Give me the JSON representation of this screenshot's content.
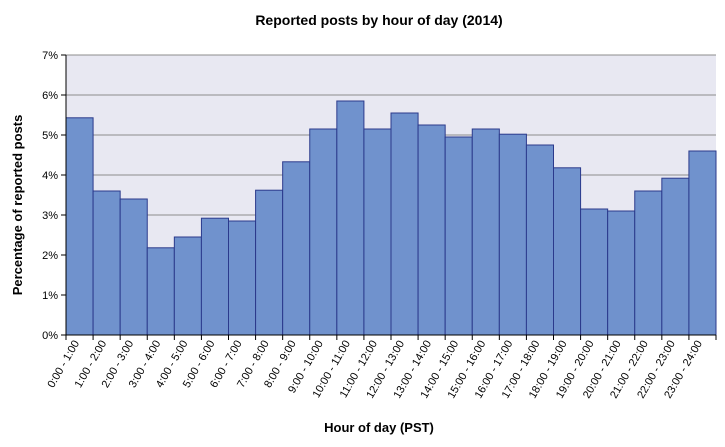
{
  "chart_data": {
    "type": "bar",
    "title": "Reported posts by hour of day (2014)",
    "xlabel": "Hour of day (PST)",
    "ylabel": "Percentage of reported posts",
    "ylim": [
      0,
      7
    ],
    "yticks": [
      "0%",
      "1%",
      "2%",
      "3%",
      "4%",
      "5%",
      "6%",
      "7%"
    ],
    "grid": true,
    "legend": "none",
    "categories": [
      "0:00 - 1:00",
      "1:00 - 2:00",
      "2:00 - 3:00",
      "3:00 - 4:00",
      "4:00 - 5:00",
      "5:00 - 6:00",
      "6:00 - 7:00",
      "7:00 - 8:00",
      "8:00 - 9:00",
      "9:00 - 10:00",
      "10:00 - 11:00",
      "11:00 - 12:00",
      "12:00 - 13:00",
      "13:00 - 14:00",
      "14:00 - 15:00",
      "15:00 - 16:00",
      "16:00 - 17:00",
      "17:00 - 18:00",
      "18:00 - 19:00",
      "19:00 - 20:00",
      "20:00 - 21:00",
      "21:00 - 22:00",
      "22:00 - 23:00",
      "23:00 - 24:00"
    ],
    "values": [
      5.43,
      3.6,
      3.4,
      2.18,
      2.45,
      2.92,
      2.85,
      3.62,
      4.33,
      5.15,
      5.85,
      5.15,
      5.55,
      5.25,
      4.95,
      5.15,
      5.02,
      4.75,
      4.18,
      3.15,
      3.1,
      3.6,
      3.92,
      4.6
    ],
    "colors": {
      "bar_fill": "#7092cd",
      "bar_stroke": "#2b3a8c",
      "plot_background": "#e8e8f2",
      "gridline": "#8c8c8c",
      "axis": "#000000"
    }
  }
}
